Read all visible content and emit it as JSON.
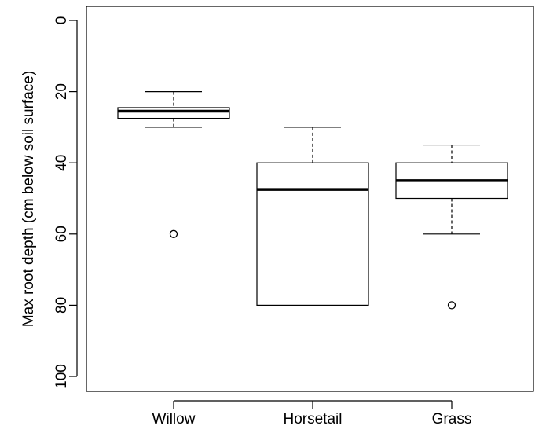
{
  "chart_data": {
    "type": "boxplot",
    "title": "",
    "xlabel": "",
    "ylabel": "Max root depth (cm below soil surface)",
    "y_inverted": true,
    "ylim": [
      0,
      100
    ],
    "yticks": [
      "0",
      "20",
      "40",
      "60",
      "80",
      "100"
    ],
    "categories": [
      "Willow",
      "Horsetail",
      "Grass"
    ],
    "boxes": [
      {
        "name": "Willow",
        "whisker_low": 20,
        "q1": 24.5,
        "median": 25.5,
        "q3": 27.5,
        "whisker_high": 30,
        "outliers": [
          60
        ]
      },
      {
        "name": "Horsetail",
        "whisker_low": 30,
        "q1": 40,
        "median": 47.5,
        "q3": 80,
        "whisker_high": 80,
        "outliers": []
      },
      {
        "name": "Grass",
        "whisker_low": 35,
        "q1": 40,
        "median": 45,
        "q3": 50,
        "whisker_high": 60,
        "outliers": [
          80
        ]
      }
    ],
    "grid": false,
    "color": "#000000"
  }
}
